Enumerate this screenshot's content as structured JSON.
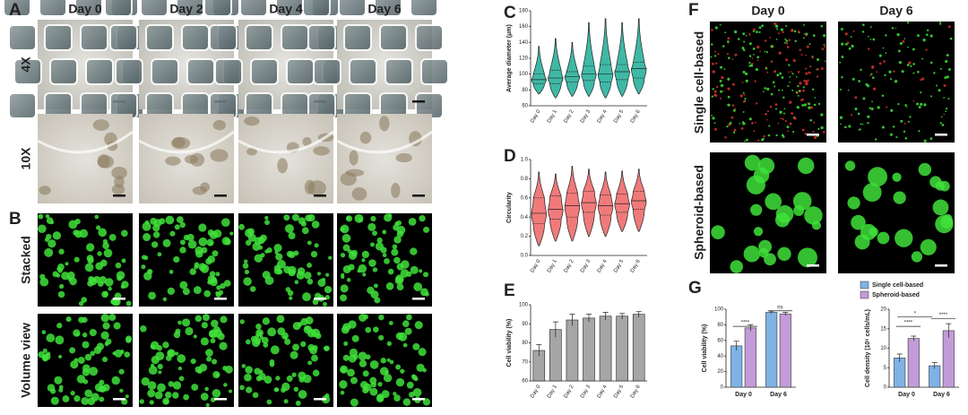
{
  "figure": {
    "panels": [
      "A",
      "B",
      "C",
      "D",
      "E",
      "F",
      "G"
    ],
    "panel_a": {
      "columns": [
        "Day 0",
        "Day 2",
        "Day 4",
        "Day 6"
      ],
      "rows": [
        "4X",
        "10X"
      ]
    },
    "panel_b": {
      "rows": [
        "Stacked",
        "Volume view"
      ]
    },
    "panel_f": {
      "columns": [
        "Day 0",
        "Day 6"
      ],
      "rows": [
        "Single cell-based",
        "Spheroid-based"
      ]
    }
  },
  "chart_data": [
    {
      "type": "violin",
      "ylabel": "Average diameter (μm)",
      "categories": [
        "Day 0",
        "Day 1",
        "Day 2",
        "Day 3",
        "Day 4",
        "Day 5",
        "Day 6"
      ],
      "min": [
        75,
        70,
        72,
        72,
        70,
        72,
        75
      ],
      "q1": [
        88,
        88,
        90,
        92,
        90,
        93,
        95
      ],
      "median": [
        93,
        95,
        97,
        100,
        100,
        103,
        107
      ],
      "q3": [
        100,
        105,
        103,
        110,
        112,
        112,
        115
      ],
      "max": [
        135,
        145,
        140,
        165,
        170,
        165,
        170
      ],
      "color": "#3fb8a6",
      "ylim": [
        60,
        180
      ],
      "yticks": [
        60,
        80,
        100,
        120,
        140,
        160,
        180
      ]
    },
    {
      "type": "violin",
      "ylabel": "Circularity",
      "categories": [
        "Day 0",
        "Day 1",
        "Day 2",
        "Day 3",
        "Day 4",
        "Day 5",
        "Day 6"
      ],
      "min": [
        0.1,
        0.15,
        0.15,
        0.2,
        0.2,
        0.25,
        0.25
      ],
      "q1": [
        0.33,
        0.38,
        0.4,
        0.45,
        0.42,
        0.45,
        0.48
      ],
      "median": [
        0.44,
        0.48,
        0.52,
        0.55,
        0.52,
        0.54,
        0.57
      ],
      "q3": [
        0.6,
        0.62,
        0.65,
        0.67,
        0.63,
        0.64,
        0.67
      ],
      "max": [
        0.87,
        0.85,
        0.93,
        0.9,
        0.87,
        0.88,
        0.9
      ],
      "color": "#f07a7a",
      "ylim": [
        0,
        1
      ],
      "yticks": [
        {
          "value": 0,
          "label": "0.0"
        },
        {
          "value": 0.2,
          "label": "0.2"
        },
        {
          "value": 0.4,
          "label": "0.4"
        },
        {
          "value": 0.6,
          "label": "0.6"
        },
        {
          "value": 0.8,
          "label": "0.8"
        },
        {
          "value": 1,
          "label": "1.0"
        }
      ]
    },
    {
      "type": "bar",
      "ylabel": "Cell viability (%)",
      "categories": [
        "Day 0",
        "Day 1",
        "Day 2",
        "Day 3",
        "Day 4",
        "Day 5",
        "Day 6"
      ],
      "values": [
        76,
        87,
        92,
        93,
        94,
        94,
        95
      ],
      "errors": [
        3,
        4,
        3,
        2,
        2,
        1.5,
        1.5
      ],
      "color": "#a6a6a6",
      "ylim": [
        60,
        100
      ],
      "yticks": [
        60,
        70,
        80,
        90,
        100
      ]
    },
    {
      "type": "grouped_bar",
      "ylabel": "Cell viability (%)",
      "categories": [
        "Day 0",
        "Day 6"
      ],
      "series": [
        {
          "name": "Single cell-based",
          "color": "#7fb2e5",
          "values": [
            53,
            96
          ],
          "errors": [
            6,
            1.5
          ]
        },
        {
          "name": "Spheroid-based",
          "color": "#c39bd8",
          "values": [
            76,
            94
          ],
          "errors": [
            4,
            2
          ]
        }
      ],
      "ylim": [
        0,
        100
      ],
      "yticks": [
        0,
        20,
        40,
        60,
        80,
        100
      ],
      "annotations": [
        "****",
        "ns"
      ]
    },
    {
      "type": "grouped_bar",
      "ylabel": "Cell density (10⁶ cells/mL)",
      "categories": [
        "Day 0",
        "Day 6"
      ],
      "series": [
        {
          "name": "Single cell-based",
          "color": "#7fb2e5",
          "values": [
            7.5,
            5.5
          ],
          "errors": [
            1,
            0.8
          ]
        },
        {
          "name": "Spheroid-based",
          "color": "#c39bd8",
          "values": [
            12.5,
            14.5
          ],
          "errors": [
            0.6,
            1.8
          ]
        }
      ],
      "ylim": [
        0,
        20
      ],
      "yticks": [
        0,
        5,
        10,
        15,
        20
      ],
      "annotations": [
        "****",
        "*",
        "****"
      ],
      "legend": "top"
    }
  ]
}
